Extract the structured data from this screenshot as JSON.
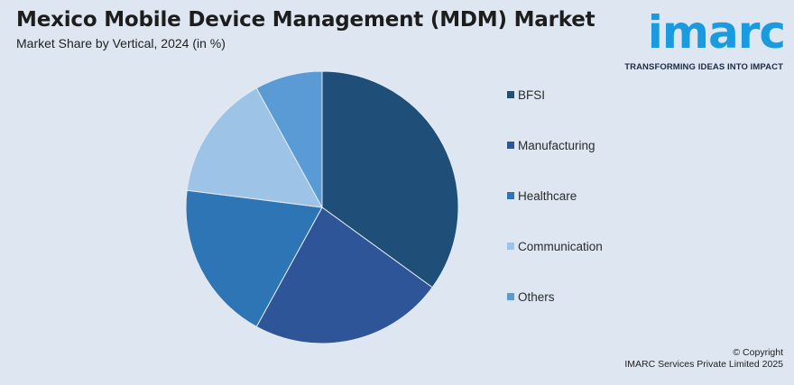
{
  "header": {
    "title": "Mexico Mobile Device Management (MDM) Market",
    "subtitle": "Market Share by Vertical, 2024 (in %)"
  },
  "logo": {
    "word": "imarc",
    "tagline": "TRANSFORMING IDEAS INTO IMPACT",
    "color": "#1a9be0"
  },
  "chart_data": {
    "type": "pie",
    "title": "Mexico Mobile Device Management (MDM) Market",
    "subtitle": "Market Share by Vertical, 2024 (in %)",
    "categories": [
      "BFSI",
      "Manufacturing",
      "Healthcare",
      "Communication",
      "Others"
    ],
    "values": [
      35,
      23,
      19,
      15,
      8
    ],
    "colors": [
      "#1f4e79",
      "#2e5598",
      "#2e75b6",
      "#9dc3e6",
      "#5b9bd5"
    ],
    "legend_position": "right"
  },
  "footer": {
    "copyright_line1": "© Copyright",
    "copyright_line2": "IMARC Services Private Limited 2025"
  }
}
